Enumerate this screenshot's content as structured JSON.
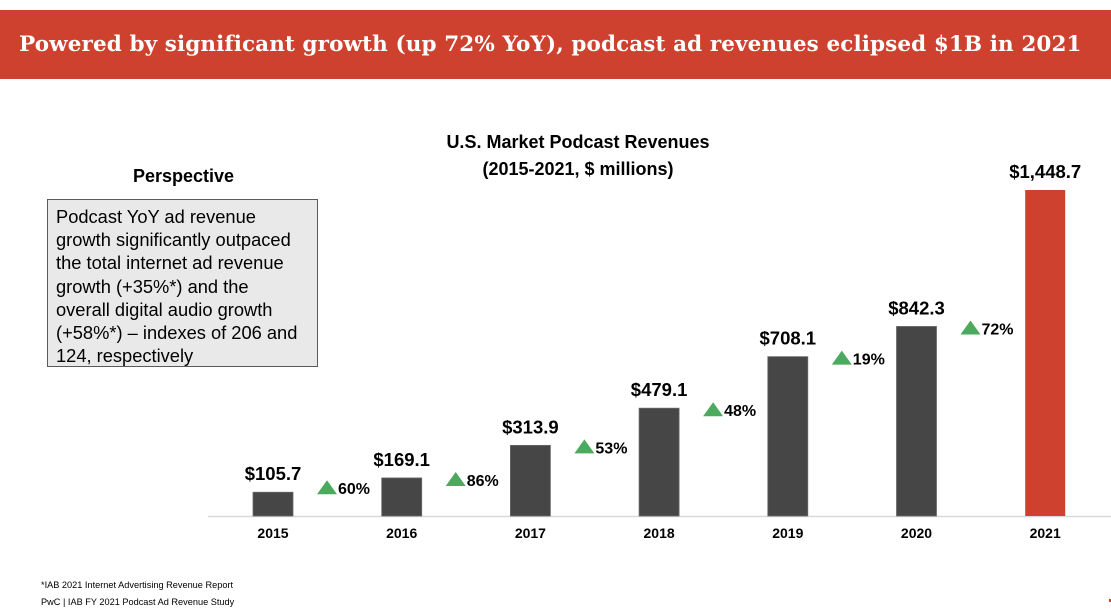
{
  "header": {
    "title": "Powered by significant growth (up 72% YoY), podcast ad revenues eclipsed $1B in 2021"
  },
  "perspective": {
    "heading": "Perspective",
    "lines": [
      "Podcast YoY ad revenue",
      "growth significantly outpaced",
      "the total internet ad revenue",
      "growth (+35%*) and the",
      "overall digital audio growth",
      "(+58%*) – indexes of 206 and",
      "124, respectively"
    ]
  },
  "colors": {
    "header_bg": "#CD412E",
    "bar_default": "#464646",
    "bar_highlight": "#CD412E",
    "growth_arrow": "#4CAA5E",
    "axis_line": "#D9D9D9"
  },
  "chart_data": {
    "type": "bar",
    "title": "U.S. Market Podcast Revenues",
    "subtitle": "(2015-2021, $ millions)",
    "xlabel": "",
    "ylabel": "",
    "ylim": [
      0,
      1448.7
    ],
    "grid": false,
    "categories": [
      "2015",
      "2016",
      "2017",
      "2018",
      "2019",
      "2020",
      "2021"
    ],
    "values": [
      105.7,
      169.1,
      313.9,
      479.1,
      708.1,
      842.3,
      1448.7
    ],
    "value_labels": [
      "$105.7",
      "$169.1",
      "$313.9",
      "$479.1",
      "$708.1",
      "$842.3",
      "$1,448.7"
    ],
    "highlight_category": "2021",
    "yoy_growth": [
      {
        "between": [
          "2015",
          "2016"
        ],
        "label": "60%",
        "direction": "up"
      },
      {
        "between": [
          "2016",
          "2017"
        ],
        "label": "86%",
        "direction": "up"
      },
      {
        "between": [
          "2017",
          "2018"
        ],
        "label": "53%",
        "direction": "up"
      },
      {
        "between": [
          "2018",
          "2019"
        ],
        "label": "48%",
        "direction": "up"
      },
      {
        "between": [
          "2019",
          "2020"
        ],
        "label": "19%",
        "direction": "up"
      },
      {
        "between": [
          "2020",
          "2021"
        ],
        "label": "72%",
        "direction": "up"
      }
    ]
  },
  "footnotes": {
    "source_note": "*IAB 2021 Internet Advertising Revenue Report",
    "credit": "PwC  |  IAB FY 2021 Podcast Ad Revenue Study"
  }
}
